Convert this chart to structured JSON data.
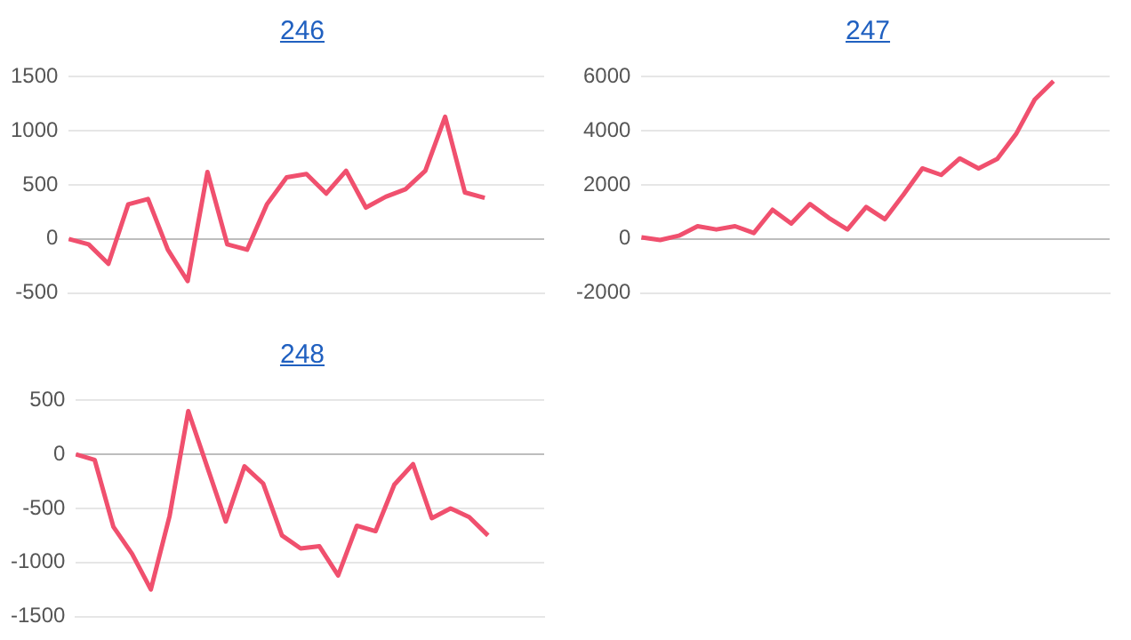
{
  "chart_data": [
    {
      "type": "line",
      "title": "246",
      "categories": [
        null,
        null,
        null,
        null,
        null,
        null,
        null,
        null,
        null,
        null,
        null,
        null,
        null,
        null,
        null,
        null,
        null,
        null,
        null,
        null,
        null,
        null,
        null,
        null,
        null
      ],
      "series": [
        {
          "color": "#f0506e",
          "values": [
            0,
            -50,
            -230,
            320,
            370,
            -100,
            -390,
            620,
            -50,
            -100,
            320,
            570,
            600,
            420,
            630,
            290,
            390,
            460,
            630,
            1130,
            430,
            380,
            null,
            null,
            null
          ]
        }
      ],
      "ylim": [
        -500,
        1500
      ],
      "yticks": [
        -500,
        0,
        500,
        1000,
        1500
      ],
      "grid": "y",
      "tick_labels": "y",
      "marker": "none"
    },
    {
      "type": "line",
      "title": "247",
      "categories": [
        null,
        null,
        null,
        null,
        null,
        null,
        null,
        null,
        null,
        null,
        null,
        null,
        null,
        null,
        null,
        null,
        null,
        null,
        null,
        null,
        null,
        null,
        null,
        null,
        null,
        null
      ],
      "series": [
        {
          "color": "#f0506e",
          "values": [
            60,
            -40,
            120,
            470,
            350,
            470,
            220,
            1080,
            570,
            1290,
            780,
            350,
            1180,
            730,
            1650,
            2610,
            2370,
            2980,
            2610,
            2960,
            3880,
            5160,
            5840,
            null,
            null,
            null
          ]
        }
      ],
      "ylim": [
        -2000,
        6000
      ],
      "yticks": [
        -2000,
        0,
        2000,
        4000,
        6000
      ],
      "grid": "y",
      "tick_labels": "y",
      "marker": "none"
    },
    {
      "type": "line",
      "title": "248",
      "categories": [
        null,
        null,
        null,
        null,
        null,
        null,
        null,
        null,
        null,
        null,
        null,
        null,
        null,
        null,
        null,
        null,
        null,
        null,
        null,
        null,
        null,
        null,
        null,
        null,
        null,
        null
      ],
      "series": [
        {
          "color": "#f0506e",
          "values": [
            0,
            -50,
            -670,
            -920,
            -1250,
            -570,
            400,
            -110,
            -620,
            -110,
            -270,
            -750,
            -870,
            -850,
            -1120,
            -660,
            -710,
            -280,
            -90,
            -590,
            -500,
            -580,
            -750,
            null,
            null,
            null
          ]
        }
      ],
      "ylim": [
        -1500,
        500
      ],
      "yticks": [
        -1500,
        -1000,
        -500,
        0,
        500
      ],
      "grid": "y",
      "tick_labels": "y",
      "marker": "none"
    }
  ]
}
